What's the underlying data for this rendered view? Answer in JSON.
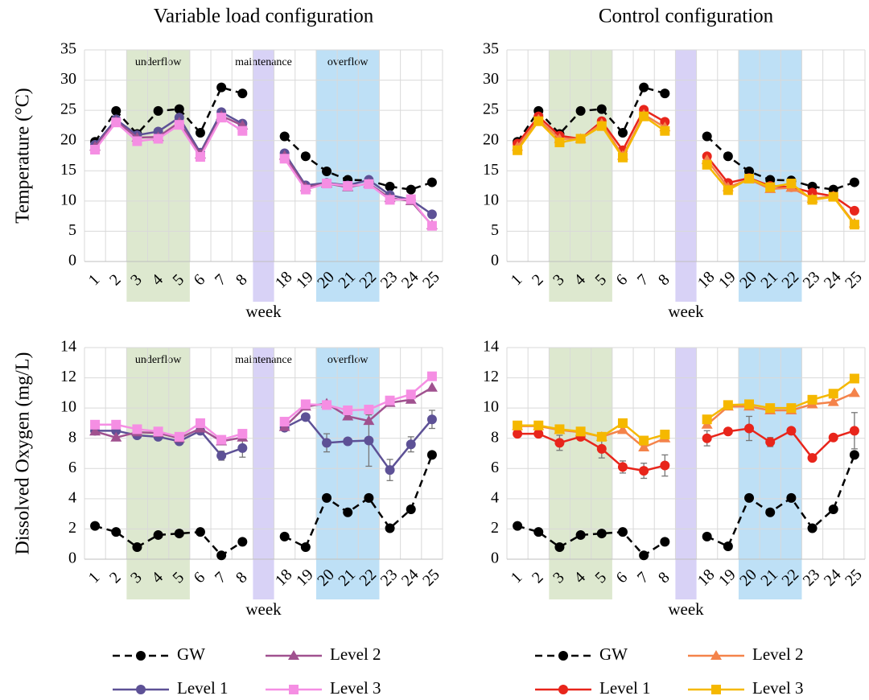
{
  "chart_data": [
    {
      "type": "line",
      "title": "Variable load configuration",
      "ylabel": "Temperature (°C)",
      "xlabel": "week",
      "categories": [
        "1",
        "2",
        "3",
        "4",
        "5",
        "6",
        "7",
        "8",
        null,
        "18",
        "19",
        "20",
        "21",
        "22",
        "23",
        "24",
        "25"
      ],
      "ylim": [
        0,
        35
      ],
      "yticks": [
        0,
        5,
        10,
        15,
        20,
        25,
        30,
        35
      ],
      "grid": true,
      "bands": [
        {
          "label": "underflow",
          "categories": [
            "3",
            "5"
          ],
          "color": "#dde8cf"
        },
        {
          "label": "maintenance",
          "between": [
            "8",
            "18"
          ],
          "color": "#d8d2f6"
        },
        {
          "label": "overflow",
          "categories": [
            "20",
            "22"
          ],
          "color": "#bee0f6"
        }
      ],
      "series": [
        {
          "name": "GW",
          "color": "#000000",
          "marker": "circle",
          "linestyle": "dashed",
          "values": [
            19.8,
            24.9,
            21.1,
            24.9,
            25.2,
            21.3,
            28.8,
            27.8,
            null,
            20.7,
            17.4,
            14.9,
            13.5,
            13.4,
            12.4,
            11.9,
            13.1
          ]
        },
        {
          "name": "Level 1",
          "color": "#5d5196",
          "marker": "circle",
          "linestyle": "solid",
          "values": [
            19.3,
            23.5,
            20.9,
            21.5,
            23.8,
            18.0,
            24.7,
            22.8,
            null,
            17.9,
            12.6,
            13.0,
            12.6,
            13.5,
            11.0,
            10.2,
            7.8
          ]
        },
        {
          "name": "Level 2",
          "color": "#a0518f",
          "marker": "triangle",
          "linestyle": "solid",
          "values": [
            19.0,
            23.2,
            20.5,
            20.6,
            23.0,
            17.7,
            24.1,
            22.5,
            null,
            17.5,
            12.3,
            12.9,
            12.3,
            12.9,
            10.5,
            10.0,
            6.0
          ]
        },
        {
          "name": "Level 3",
          "color": "#f58ee3",
          "marker": "square",
          "linestyle": "solid",
          "values": [
            18.5,
            23.0,
            19.9,
            20.3,
            22.6,
            17.3,
            23.8,
            21.6,
            null,
            17.0,
            11.9,
            12.9,
            12.5,
            12.8,
            10.2,
            10.3,
            5.9
          ]
        }
      ]
    },
    {
      "type": "line",
      "title": "Control configuration",
      "xlabel": "week",
      "categories": [
        "1",
        "2",
        "3",
        "4",
        "5",
        "6",
        "7",
        "8",
        null,
        "18",
        "19",
        "20",
        "21",
        "22",
        "23",
        "24",
        "25"
      ],
      "ylim": [
        0,
        35
      ],
      "yticks": [
        0,
        5,
        10,
        15,
        20,
        25,
        30,
        35
      ],
      "grid": true,
      "bands": [
        {
          "categories": [
            "3",
            "5"
          ],
          "color": "#dde8cf"
        },
        {
          "between": [
            "8",
            "18"
          ],
          "color": "#d8d2f6"
        },
        {
          "categories": [
            "20",
            "22"
          ],
          "color": "#bee0f6"
        }
      ],
      "series": [
        {
          "name": "GW",
          "color": "#000000",
          "marker": "circle",
          "linestyle": "dashed",
          "values": [
            19.8,
            24.9,
            21.1,
            24.9,
            25.2,
            21.3,
            28.8,
            27.8,
            null,
            20.7,
            17.4,
            14.9,
            13.5,
            13.4,
            12.4,
            11.9,
            13.1
          ]
        },
        {
          "name": "Level 1",
          "color": "#e8251b",
          "marker": "circle",
          "linestyle": "solid",
          "values": [
            19.5,
            24.0,
            20.8,
            20.3,
            23.2,
            18.4,
            25.1,
            23.1,
            null,
            17.4,
            13.0,
            13.8,
            12.5,
            12.3,
            11.4,
            10.8,
            8.4
          ]
        },
        {
          "name": "Level 2",
          "color": "#f4834a",
          "marker": "triangle",
          "linestyle": "solid",
          "values": [
            19.0,
            23.5,
            20.3,
            20.3,
            22.8,
            17.5,
            24.3,
            22.2,
            null,
            16.8,
            12.3,
            13.6,
            12.0,
            12.2,
            10.4,
            10.8,
            6.3
          ]
        },
        {
          "name": "Level 3",
          "color": "#f5b800",
          "marker": "square",
          "linestyle": "solid",
          "values": [
            18.4,
            23.2,
            19.7,
            20.3,
            22.4,
            17.2,
            24.0,
            21.6,
            null,
            16.0,
            11.8,
            13.7,
            12.3,
            12.9,
            10.2,
            10.7,
            6.1
          ]
        }
      ]
    },
    {
      "type": "line",
      "ylabel": "Dissolved Oxygen (mg/L)",
      "xlabel": "week",
      "categories": [
        "1",
        "2",
        "3",
        "4",
        "5",
        "6",
        "7",
        "8",
        null,
        "18",
        "19",
        "20",
        "21",
        "22",
        "23",
        "24",
        "25"
      ],
      "ylim": [
        0,
        14
      ],
      "yticks": [
        0,
        2,
        4,
        6,
        8,
        10,
        12,
        14
      ],
      "grid": true,
      "bands": [
        {
          "label": "underflow",
          "categories": [
            "3",
            "5"
          ],
          "color": "#dde8cf"
        },
        {
          "label": "maintenance",
          "between": [
            "8",
            "18"
          ],
          "color": "#d8d2f6"
        },
        {
          "label": "overflow",
          "categories": [
            "20",
            "22"
          ],
          "color": "#bee0f6"
        }
      ],
      "series": [
        {
          "name": "GW",
          "color": "#000000",
          "marker": "circle",
          "linestyle": "dashed",
          "values": [
            2.2,
            1.8,
            0.8,
            1.6,
            1.7,
            1.8,
            0.25,
            1.15,
            null,
            1.5,
            0.8,
            4.05,
            3.1,
            4.05,
            2.05,
            3.3,
            6.9
          ]
        },
        {
          "name": "Level 1",
          "color": "#5d5196",
          "marker": "circle",
          "linestyle": "solid",
          "values": [
            8.5,
            8.5,
            8.2,
            8.1,
            7.8,
            8.5,
            6.85,
            7.35,
            null,
            8.7,
            9.4,
            7.7,
            7.8,
            7.85,
            5.9,
            7.6,
            9.25
          ],
          "errors": [
            null,
            null,
            null,
            null,
            null,
            null,
            0.3,
            0.6,
            null,
            null,
            null,
            0.6,
            null,
            1.7,
            0.7,
            0.5,
            0.6
          ]
        },
        {
          "name": "Level 2",
          "color": "#a0518f",
          "marker": "triangle",
          "linestyle": "solid",
          "values": [
            8.45,
            8.05,
            8.4,
            8.35,
            8.0,
            8.65,
            7.8,
            8.05,
            null,
            8.75,
            10.1,
            10.3,
            9.45,
            9.15,
            10.35,
            10.55,
            11.35
          ]
        },
        {
          "name": "Level 3",
          "color": "#f58ee3",
          "marker": "square",
          "linestyle": "solid",
          "values": [
            8.9,
            8.9,
            8.6,
            8.45,
            8.1,
            9.0,
            7.9,
            8.3,
            null,
            9.1,
            10.25,
            10.2,
            9.85,
            9.9,
            10.5,
            10.9,
            12.1
          ]
        }
      ]
    },
    {
      "type": "line",
      "xlabel": "week",
      "categories": [
        "1",
        "2",
        "3",
        "4",
        "5",
        "6",
        "7",
        "8",
        null,
        "18",
        "19",
        "20",
        "21",
        "22",
        "23",
        "24",
        "25"
      ],
      "ylim": [
        0,
        14
      ],
      "yticks": [
        0,
        2,
        4,
        6,
        8,
        10,
        12,
        14
      ],
      "grid": true,
      "bands": [
        {
          "categories": [
            "3",
            "5"
          ],
          "color": "#dde8cf"
        },
        {
          "between": [
            "8",
            "18"
          ],
          "color": "#d8d2f6"
        },
        {
          "categories": [
            "20",
            "22"
          ],
          "color": "#bee0f6"
        }
      ],
      "series": [
        {
          "name": "GW",
          "color": "#000000",
          "marker": "circle",
          "linestyle": "dashed",
          "values": [
            2.2,
            1.8,
            0.8,
            1.6,
            1.7,
            1.8,
            0.25,
            1.15,
            null,
            1.5,
            0.85,
            4.05,
            3.1,
            4.05,
            2.05,
            3.3,
            6.9
          ]
        },
        {
          "name": "Level 1",
          "color": "#e8251b",
          "marker": "circle",
          "linestyle": "solid",
          "values": [
            8.3,
            8.3,
            7.7,
            8.1,
            7.3,
            6.1,
            5.85,
            6.2,
            null,
            8.0,
            8.45,
            8.65,
            7.75,
            8.5,
            6.7,
            8.05,
            8.5
          ],
          "errors": [
            null,
            null,
            0.5,
            null,
            0.6,
            0.4,
            0.5,
            0.7,
            null,
            0.5,
            null,
            0.8,
            0.3,
            null,
            null,
            null,
            1.2
          ]
        },
        {
          "name": "Level 2",
          "color": "#f4834a",
          "marker": "triangle",
          "linestyle": "solid",
          "values": [
            8.8,
            8.8,
            8.55,
            8.4,
            8.1,
            8.55,
            7.4,
            8.0,
            null,
            8.9,
            10.1,
            10.1,
            9.85,
            9.85,
            10.25,
            10.4,
            11.0
          ]
        },
        {
          "name": "Level 3",
          "color": "#f5b800",
          "marker": "square",
          "linestyle": "solid",
          "values": [
            8.85,
            8.85,
            8.6,
            8.45,
            8.1,
            9.0,
            7.85,
            8.25,
            null,
            9.25,
            10.2,
            10.25,
            10.0,
            10.0,
            10.55,
            10.95,
            11.95
          ]
        }
      ]
    }
  ]
}
